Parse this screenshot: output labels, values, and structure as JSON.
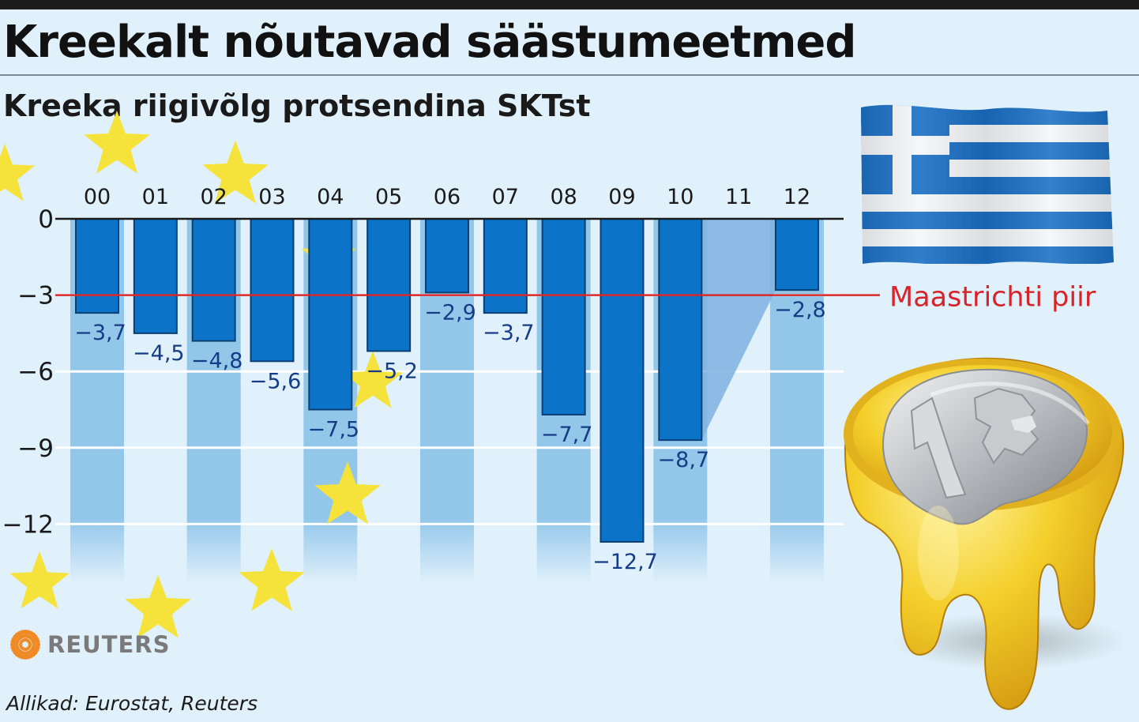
{
  "header": {
    "title": "Kreekalt nõutavad säästumeetmed",
    "subtitle": "Kreeka riigivõlg protsendina SKTst"
  },
  "footer": {
    "source": "Allikad: Eurostat, Reuters",
    "logo_text": "REUTERS"
  },
  "colors": {
    "bar": "#0b74c8",
    "bar_edge": "#0a3f75",
    "column_band": "#93c7ea",
    "projection_fill": "#7fb2e1",
    "limit_line": "#d8282a",
    "limit_label": "#d8232a",
    "value_label": "#163c86",
    "background": "#e1f1fb",
    "star": "#f5e23a",
    "reuters_orange": "#f08a24"
  },
  "chart_data": {
    "type": "bar",
    "title": "Kreeka riigivõlg protsendina SKTst",
    "categories": [
      "00",
      "01",
      "02",
      "03",
      "04",
      "05",
      "06",
      "07",
      "08",
      "09",
      "10",
      "11",
      "12"
    ],
    "values": [
      -3.7,
      -4.5,
      -4.8,
      -5.6,
      -7.5,
      -5.2,
      -2.9,
      -3.7,
      -7.7,
      -12.7,
      -8.7,
      null,
      -2.8
    ],
    "value_labels": [
      "−3,7",
      "−4,5",
      "−4,8",
      "−5,6",
      "−7,5",
      "−5,2",
      "−2,9",
      "−3,7",
      "−7,7",
      "−12,7",
      "−8,7",
      "",
      "−2,8"
    ],
    "yticks": [
      0,
      -3,
      -6,
      -9,
      -12
    ],
    "ytick_labels": [
      "0",
      "−3",
      "−6",
      "−9",
      "−12"
    ],
    "ylim": [
      -14,
      0
    ],
    "x_axis_position": "top",
    "grid": true,
    "reference_line": {
      "value": -3,
      "label": "Maastrichti piir"
    },
    "xlabel": "",
    "ylabel": ""
  }
}
